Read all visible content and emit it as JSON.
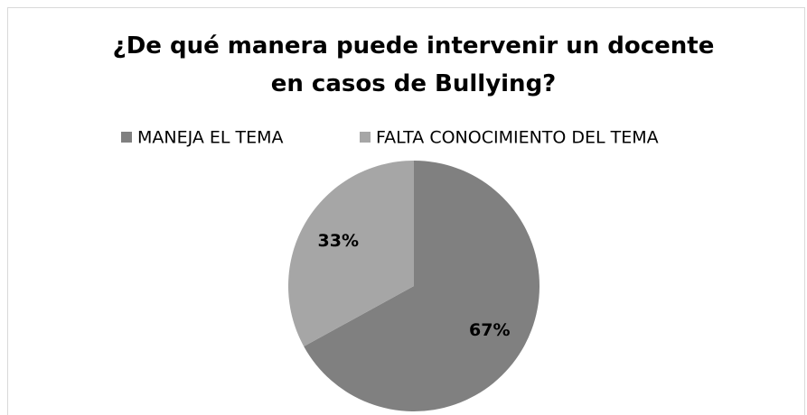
{
  "chart_data": {
    "type": "pie",
    "title": "¿De qué manera puede intervenir un docente en casos de Bullying?",
    "categories": [
      "MANEJA EL TEMA",
      "FALTA CONOCIMIENTO DEL TEMA"
    ],
    "values": [
      67,
      33
    ],
    "value_labels": [
      "67%",
      "33%"
    ],
    "colors": [
      "#808080",
      "#a6a6a6"
    ],
    "legend": "top"
  }
}
